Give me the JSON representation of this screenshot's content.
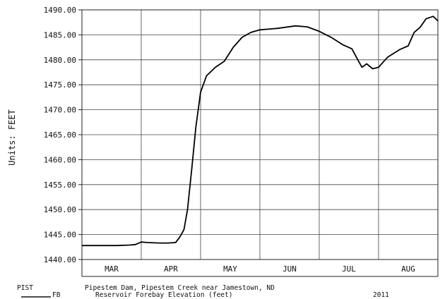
{
  "chart_data": {
    "type": "line",
    "ylabel": "Units: FEET",
    "ylim": [
      1440,
      1490
    ],
    "yticks": [
      "1490.00",
      "1485.00",
      "1480.00",
      "1475.00",
      "1470.00",
      "1465.00",
      "1460.00",
      "1455.00",
      "1450.00",
      "1445.00",
      "1440.00"
    ],
    "xlim": [
      0,
      6
    ],
    "month_labels": [
      "MAR",
      "APR",
      "MAY",
      "JUN",
      "JUL",
      "AUG"
    ],
    "grid": true,
    "series": [
      {
        "x": [
          0.0,
          0.2,
          0.4,
          0.6,
          0.8,
          0.9,
          1.0,
          1.1,
          1.3,
          1.45,
          1.58,
          1.65,
          1.72,
          1.78,
          1.85,
          1.92,
          2.0,
          2.1,
          2.25,
          2.4,
          2.55,
          2.7,
          2.85,
          3.0,
          3.3,
          3.6,
          3.8,
          4.0,
          4.2,
          4.4,
          4.55,
          4.65,
          4.72,
          4.8,
          4.9,
          5.0,
          5.15,
          5.35,
          5.5,
          5.6,
          5.7,
          5.8,
          5.92,
          6.0
        ],
        "values": [
          1442.8,
          1442.8,
          1442.8,
          1442.8,
          1442.9,
          1443.0,
          1443.5,
          1443.4,
          1443.3,
          1443.3,
          1443.4,
          1444.5,
          1446.0,
          1450.0,
          1458.0,
          1466.5,
          1473.5,
          1476.8,
          1478.5,
          1479.7,
          1482.5,
          1484.5,
          1485.5,
          1486.0,
          1486.3,
          1486.8,
          1486.6,
          1485.7,
          1484.5,
          1483.0,
          1482.2,
          1480.0,
          1478.5,
          1479.2,
          1478.2,
          1478.5,
          1480.5,
          1482.0,
          1482.8,
          1485.5,
          1486.5,
          1488.2,
          1488.7,
          1487.8
        ]
      }
    ]
  },
  "footer": {
    "station_code": "PIST",
    "station_desc": "Pipestem Dam, Pipestem Creek near Jamestown, ND",
    "param_code": "FB",
    "param_desc": "Reservoir Forebay Elevation (feet)",
    "year": "2011"
  }
}
